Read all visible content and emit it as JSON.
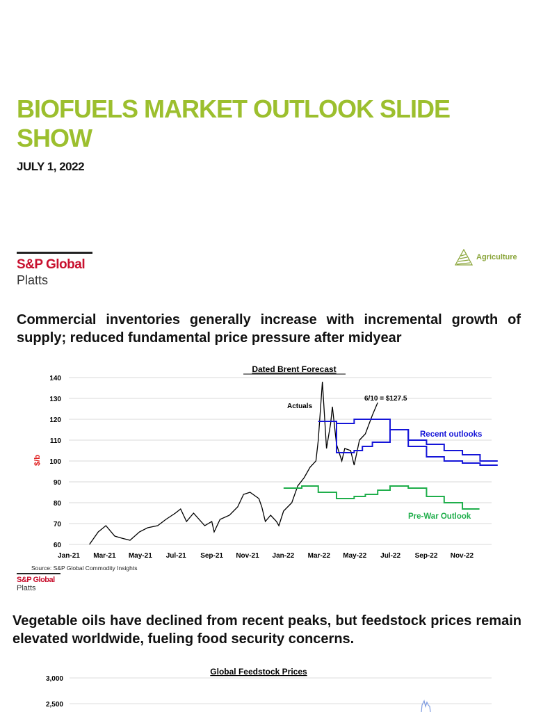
{
  "title": "BIOFUELS MARKET OUTLOOK SLIDE SHOW",
  "date": "JULY 1, 2022",
  "logo": {
    "line1": "S&P Global",
    "line2": "Platts"
  },
  "badge": {
    "icon": "agriculture-icon",
    "label": "Agriculture"
  },
  "section1": {
    "heading": "Commercial inventories generally increase with incremental growth of supply; reduced fundamental price pressure after midyear"
  },
  "chart_data": [
    {
      "type": "line",
      "title": "Dated Brent Forecast",
      "ylabel": "$/b",
      "ylim": [
        60,
        140
      ],
      "yticks": [
        "60",
        "70",
        "80",
        "90",
        "100",
        "110",
        "120",
        "130",
        "140"
      ],
      "xticks": [
        "Jan-21",
        "Mar-21",
        "May-21",
        "Jul-21",
        "Sep-21",
        "Nov-21",
        "Jan-22",
        "Mar-22",
        "May-22",
        "Jul-22",
        "Sep-22",
        "Nov-22"
      ],
      "xlim": [
        "2021-01-01",
        "2022-12-31"
      ],
      "grid": true,
      "annotations": [
        "Actuals",
        "6/10 = $127.5"
      ],
      "source": "Source: S&P Global Commodity Insights",
      "series": [
        {
          "name": "Actuals",
          "color": "#000000",
          "step": false,
          "points": [
            [
              "2021-02-05",
              60
            ],
            [
              "2021-02-20",
              66
            ],
            [
              "2021-03-05",
              69
            ],
            [
              "2021-03-20",
              64
            ],
            [
              "2021-04-01",
              63
            ],
            [
              "2021-04-15",
              62
            ],
            [
              "2021-05-01",
              66
            ],
            [
              "2021-05-15",
              68
            ],
            [
              "2021-06-01",
              69
            ],
            [
              "2021-06-15",
              72
            ],
            [
              "2021-07-01",
              75
            ],
            [
              "2021-07-10",
              77
            ],
            [
              "2021-07-20",
              71
            ],
            [
              "2021-08-01",
              75
            ],
            [
              "2021-08-20",
              69
            ],
            [
              "2021-09-01",
              71
            ],
            [
              "2021-09-05",
              66
            ],
            [
              "2021-09-15",
              72
            ],
            [
              "2021-10-01",
              74
            ],
            [
              "2021-10-15",
              78
            ],
            [
              "2021-10-25",
              84
            ],
            [
              "2021-11-05",
              85
            ],
            [
              "2021-11-20",
              82
            ],
            [
              "2021-11-25",
              78
            ],
            [
              "2021-12-01",
              71
            ],
            [
              "2021-12-10",
              74
            ],
            [
              "2021-12-20",
              71
            ],
            [
              "2021-12-24",
              69
            ],
            [
              "2022-01-01",
              76
            ],
            [
              "2022-01-15",
              80
            ],
            [
              "2022-01-25",
              88
            ],
            [
              "2022-02-05",
              92
            ],
            [
              "2022-02-15",
              97
            ],
            [
              "2022-02-25",
              100
            ],
            [
              "2022-03-01",
              110
            ],
            [
              "2022-03-08",
              138
            ],
            [
              "2022-03-15",
              106
            ],
            [
              "2022-03-22",
              118
            ],
            [
              "2022-03-25",
              126
            ],
            [
              "2022-04-01",
              108
            ],
            [
              "2022-04-10",
              100
            ],
            [
              "2022-04-15",
              106
            ],
            [
              "2022-04-25",
              105
            ],
            [
              "2022-05-01",
              98
            ],
            [
              "2022-05-10",
              110
            ],
            [
              "2022-05-20",
              113
            ],
            [
              "2022-06-01",
              122
            ],
            [
              "2022-06-10",
              128
            ]
          ]
        },
        {
          "name": "Recent outlooks",
          "color": "#1515d8",
          "step": true,
          "points": [
            [
              "2022-03-01",
              119
            ],
            [
              "2022-04-01",
              118
            ],
            [
              "2022-05-01",
              120
            ],
            [
              "2022-07-01",
              115
            ],
            [
              "2022-08-01",
              110
            ],
            [
              "2022-09-01",
              108
            ],
            [
              "2022-10-01",
              105
            ],
            [
              "2022-11-01",
              103
            ],
            [
              "2022-12-01",
              100
            ],
            [
              "2022-12-31",
              100
            ]
          ]
        },
        {
          "name": "Recent outlooks",
          "color": "#1515d8",
          "step": true,
          "points": [
            [
              "2022-03-01",
              119
            ],
            [
              "2022-04-01",
              104
            ],
            [
              "2022-05-01",
              105
            ],
            [
              "2022-05-15",
              107
            ],
            [
              "2022-06-01",
              109
            ],
            [
              "2022-07-01",
              115
            ],
            [
              "2022-08-01",
              107
            ],
            [
              "2022-09-01",
              102
            ],
            [
              "2022-10-01",
              100
            ],
            [
              "2022-11-01",
              99
            ],
            [
              "2022-12-01",
              98
            ],
            [
              "2022-12-31",
              98
            ]
          ]
        },
        {
          "name": "Pre-War Outlook",
          "color": "#1fae4b",
          "step": true,
          "points": [
            [
              "2022-01-01",
              87
            ],
            [
              "2022-02-01",
              88
            ],
            [
              "2022-03-01",
              85
            ],
            [
              "2022-04-01",
              82
            ],
            [
              "2022-05-01",
              83
            ],
            [
              "2022-05-20",
              84
            ],
            [
              "2022-06-10",
              86
            ],
            [
              "2022-07-01",
              88
            ],
            [
              "2022-08-01",
              87
            ],
            [
              "2022-09-01",
              83
            ],
            [
              "2022-10-01",
              80
            ],
            [
              "2022-11-01",
              77
            ],
            [
              "2022-11-30",
              77
            ]
          ]
        }
      ]
    },
    {
      "type": "line",
      "title": "Global Feedstock Prices",
      "yticks": [
        "3,000",
        "2,500"
      ]
    }
  ],
  "section2": {
    "heading": "Vegetable oils have declined from recent peaks, but feedstock prices remain elevated worldwide, fueling food security concerns."
  }
}
